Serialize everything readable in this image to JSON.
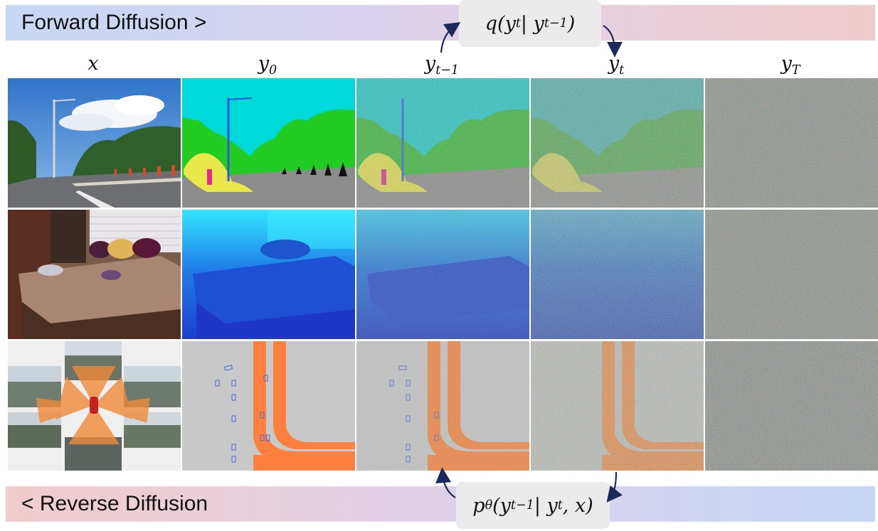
{
  "forward": {
    "label": "Forward Diffusion >"
  },
  "reverse": {
    "label": "< Reverse Diffusion"
  },
  "formulas": {
    "q": {
      "base": "q(y",
      "s1": "t",
      "mid": " | y",
      "s2": "t−1",
      "end": ")"
    },
    "p": {
      "base": "p",
      "theta": "θ",
      "open": "(y",
      "s1": "t−1",
      "mid": " | y",
      "s2": "t",
      "end": ", x)"
    }
  },
  "columns": [
    {
      "base": "x",
      "sub": ""
    },
    {
      "base": "y",
      "sub": "0"
    },
    {
      "base": "y",
      "sub": "t−1"
    },
    {
      "base": "y",
      "sub": "t"
    },
    {
      "base": "y",
      "sub": "T"
    }
  ],
  "rows": [
    "street-scene-segmentation",
    "bedroom-depth",
    "multi-camera-bev-map"
  ],
  "colors": {
    "arrow": "#1a2a5a",
    "sky_seg": "#00d9d9",
    "vegetation_seg": "#22cc22",
    "road_seg": "#8c8c8c",
    "sidewalk_seg": "#e8e84a",
    "depth_near": "#1e3fd0",
    "depth_far": "#33e6ff",
    "bev_road": "#ff7f3f",
    "bev_bg": "#c8c8c8"
  }
}
